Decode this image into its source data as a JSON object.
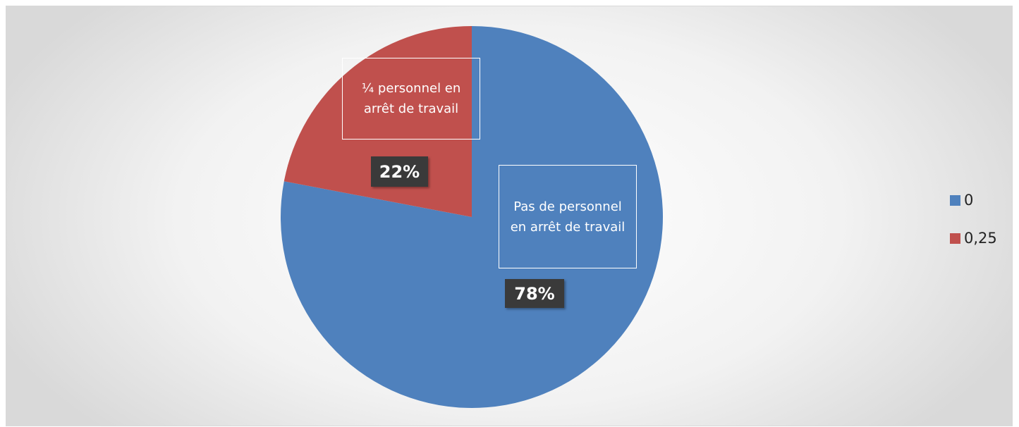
{
  "chart_data": {
    "type": "pie",
    "categories": [
      "0",
      "0,25"
    ],
    "values": [
      78,
      22
    ],
    "value_labels": [
      "78%",
      "22%"
    ],
    "slice_labels": [
      "Pas de personnel en arrêt de travail",
      "¼ personnel en arrêt de travail"
    ],
    "colors": [
      "#4f81bd",
      "#c0504d"
    ],
    "legend": "right"
  }
}
